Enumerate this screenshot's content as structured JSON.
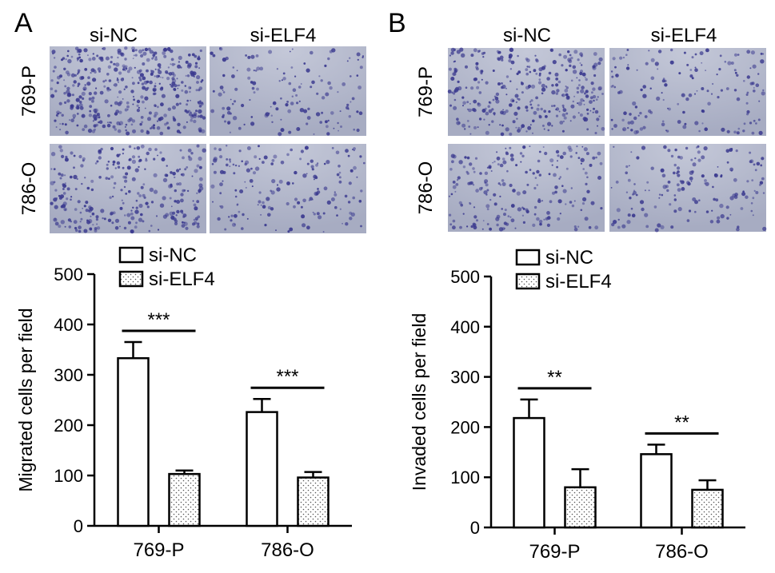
{
  "panels": [
    {
      "letter": "A",
      "col_headers": [
        "si-NC",
        "si-ELF4"
      ],
      "row_headers": [
        "769-P",
        "786-O"
      ],
      "micrograph_density": [
        [
          0.85,
          0.28
        ],
        [
          0.55,
          0.32
        ]
      ]
    },
    {
      "letter": "B",
      "col_headers": [
        "si-NC",
        "si-ELF4"
      ],
      "row_headers": [
        "769-P",
        "786-O"
      ],
      "micrograph_density": [
        [
          0.62,
          0.3
        ],
        [
          0.4,
          0.3
        ]
      ]
    }
  ],
  "chart_data": [
    {
      "type": "bar",
      "categories": [
        "769-P",
        "786-O"
      ],
      "series": [
        {
          "name": "si-NC",
          "values": [
            333,
            226
          ],
          "errors": [
            32,
            26
          ]
        },
        {
          "name": "si-ELF4",
          "values": [
            103,
            96
          ],
          "errors": [
            7,
            11
          ]
        }
      ],
      "ylabel": "Migrated cells per field",
      "ylim": [
        0,
        500
      ],
      "yticks": [
        0,
        100,
        200,
        300,
        400,
        500
      ],
      "significance": [
        "***",
        "***"
      ],
      "legend_position": "top"
    },
    {
      "type": "bar",
      "categories": [
        "769-P",
        "786-O"
      ],
      "series": [
        {
          "name": "si-NC",
          "values": [
            218,
            146
          ],
          "errors": [
            37,
            19
          ]
        },
        {
          "name": "si-ELF4",
          "values": [
            80,
            75
          ],
          "errors": [
            36,
            19
          ]
        }
      ],
      "ylabel": "Invaded cells per field",
      "ylim": [
        0,
        500
      ],
      "yticks": [
        0,
        100,
        200,
        300,
        400,
        500
      ],
      "significance": [
        "**",
        "**"
      ],
      "legend_position": "top"
    }
  ],
  "colors": {
    "micrograph_bg": "#a7acc2",
    "micrograph_bg_light": "#c4c8d8",
    "cell_stain": "#3b3a8f",
    "axis": "#000000",
    "bar_fill": "#ffffff",
    "dot_fill": "#555555"
  }
}
